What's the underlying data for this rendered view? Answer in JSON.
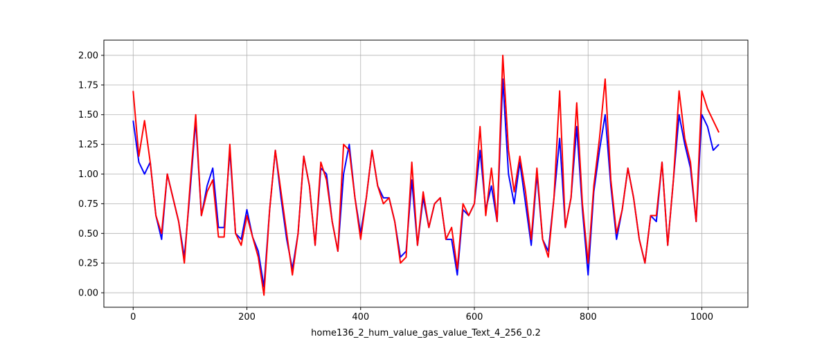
{
  "chart_data": {
    "type": "line",
    "xlabel": "home136_2_hum_value_gas_value_Text_4_256_0.2",
    "x": [
      0,
      10,
      20,
      30,
      40,
      50,
      60,
      70,
      80,
      90,
      100,
      110,
      120,
      130,
      140,
      150,
      160,
      170,
      180,
      190,
      200,
      210,
      220,
      230,
      240,
      250,
      260,
      270,
      280,
      290,
      300,
      310,
      320,
      330,
      340,
      350,
      360,
      370,
      380,
      390,
      400,
      410,
      420,
      430,
      440,
      450,
      460,
      470,
      480,
      490,
      500,
      510,
      520,
      530,
      540,
      550,
      560,
      570,
      580,
      590,
      600,
      610,
      620,
      630,
      640,
      650,
      660,
      670,
      680,
      690,
      700,
      710,
      720,
      730,
      740,
      750,
      760,
      770,
      780,
      790,
      800,
      810,
      820,
      830,
      840,
      850,
      860,
      870,
      880,
      890,
      900,
      910,
      920,
      930,
      940,
      950,
      960,
      970,
      980,
      990,
      1000,
      1010,
      1020,
      1030
    ],
    "series": [
      {
        "color": "#0000ff",
        "values": [
          1.45,
          1.1,
          1.0,
          1.1,
          0.65,
          0.45,
          1.0,
          0.8,
          0.6,
          0.3,
          0.85,
          1.45,
          0.65,
          0.9,
          1.05,
          0.55,
          0.55,
          1.2,
          0.5,
          0.45,
          0.7,
          0.47,
          0.35,
          0.05,
          0.7,
          1.2,
          0.8,
          0.45,
          0.2,
          0.5,
          1.15,
          0.9,
          0.4,
          1.05,
          1.0,
          0.6,
          0.35,
          1.0,
          1.25,
          0.8,
          0.5,
          0.8,
          1.2,
          0.9,
          0.8,
          0.8,
          0.6,
          0.3,
          0.35,
          0.95,
          0.4,
          0.8,
          0.55,
          0.75,
          0.8,
          0.45,
          0.45,
          0.15,
          0.7,
          0.65,
          0.75,
          1.2,
          0.7,
          0.9,
          0.6,
          1.8,
          1.0,
          0.75,
          1.1,
          0.75,
          0.4,
          1.0,
          0.45,
          0.35,
          0.8,
          1.3,
          0.55,
          0.8,
          1.4,
          0.7,
          0.15,
          0.85,
          1.2,
          1.5,
          0.9,
          0.45,
          0.7,
          1.05,
          0.8,
          0.45,
          0.25,
          0.65,
          0.6,
          1.1,
          0.4,
          0.95,
          1.5,
          1.25,
          1.05,
          0.6,
          1.5,
          1.4,
          1.2,
          1.25
        ]
      },
      {
        "color": "#ff0000",
        "values": [
          1.7,
          1.15,
          1.45,
          1.1,
          0.65,
          0.5,
          1.0,
          0.8,
          0.6,
          0.25,
          0.9,
          1.5,
          0.65,
          0.85,
          0.95,
          0.47,
          0.47,
          1.25,
          0.5,
          0.4,
          0.65,
          0.47,
          0.3,
          -0.02,
          0.7,
          1.2,
          0.85,
          0.5,
          0.15,
          0.5,
          1.15,
          0.9,
          0.4,
          1.1,
          0.95,
          0.6,
          0.35,
          1.25,
          1.2,
          0.8,
          0.45,
          0.8,
          1.2,
          0.9,
          0.75,
          0.8,
          0.6,
          0.25,
          0.3,
          1.1,
          0.4,
          0.85,
          0.55,
          0.75,
          0.8,
          0.45,
          0.55,
          0.2,
          0.75,
          0.65,
          0.75,
          1.4,
          0.65,
          1.05,
          0.6,
          2.0,
          1.2,
          0.85,
          1.15,
          0.85,
          0.45,
          1.05,
          0.45,
          0.3,
          0.8,
          1.7,
          0.55,
          0.8,
          1.6,
          0.75,
          0.25,
          0.9,
          1.3,
          1.8,
          0.95,
          0.5,
          0.7,
          1.05,
          0.8,
          0.45,
          0.25,
          0.65,
          0.65,
          1.1,
          0.4,
          0.95,
          1.7,
          1.3,
          1.1,
          0.6,
          1.7,
          1.55,
          1.45,
          1.35
        ]
      }
    ],
    "xlim": [
      -51.5,
      1081
    ],
    "ylim": [
      -0.122,
      2.128
    ],
    "xticks": [
      0,
      200,
      400,
      600,
      800,
      1000
    ],
    "yticks": [
      {
        "value": 0,
        "label": "0.00"
      },
      0.25,
      {
        "value": 0.5,
        "label": "0.50"
      },
      0.75,
      {
        "value": 1,
        "label": "1.00"
      },
      1.25,
      {
        "value": 1.5,
        "label": "1.50"
      },
      1.75,
      {
        "value": 2,
        "label": "2.00"
      }
    ],
    "grid": true
  }
}
